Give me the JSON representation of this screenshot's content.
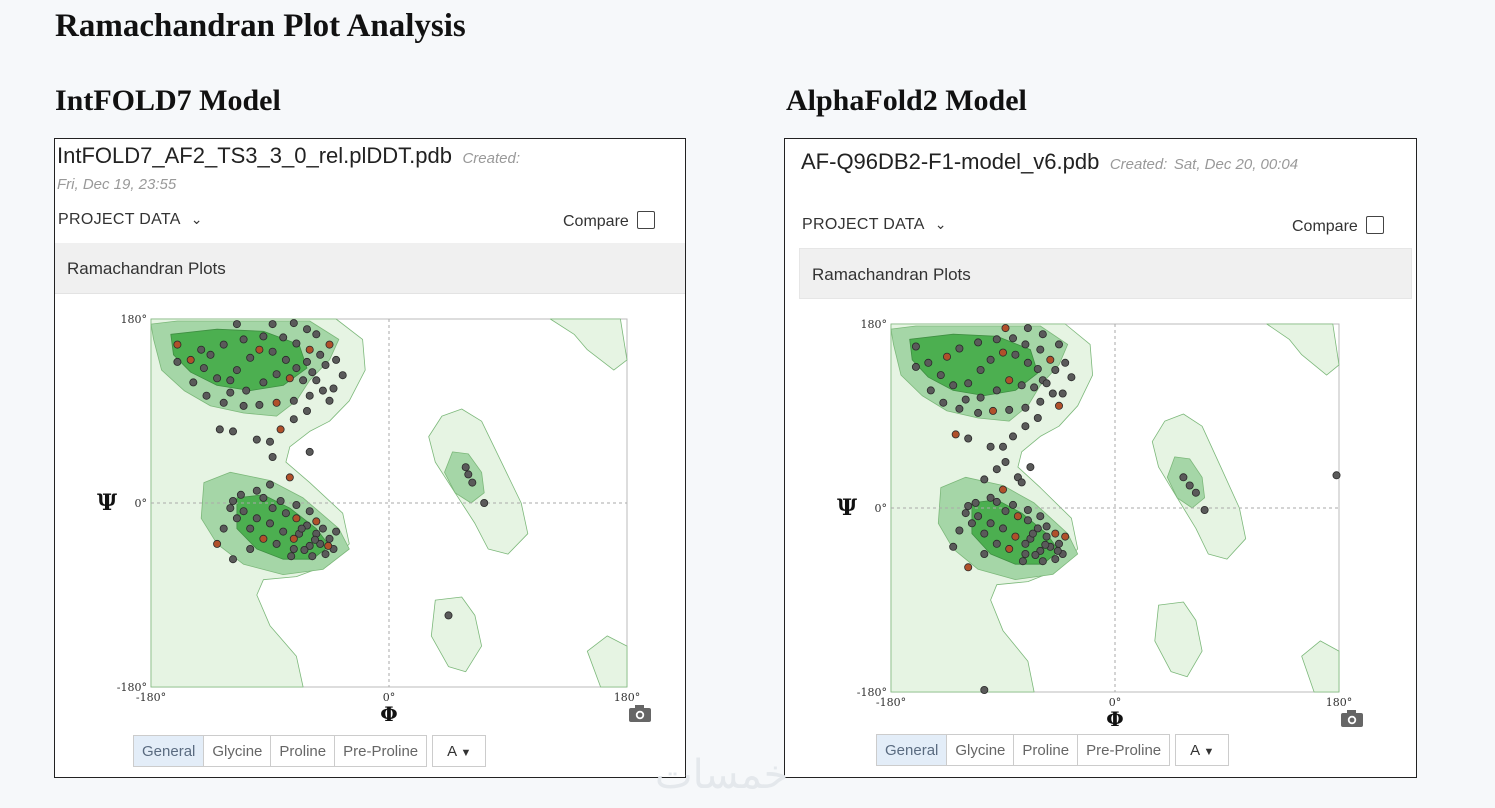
{
  "title": "Ramachandran Plot Analysis",
  "watermark": "خمسات",
  "panels": [
    {
      "heading": "IntFOLD7 Model",
      "file_name": "IntFOLD7_AF2_TS3_3_0_rel.plDDT.pdb",
      "created_label": "Created:",
      "created_value": "Fri, Dec 19, 23:55",
      "project_data": "PROJECT DATA",
      "compare": "Compare",
      "plot_header": "Ramachandran Plots",
      "tabs": [
        "General",
        "Glycine",
        "Proline",
        "Pre-Proline"
      ],
      "active_tab": "General",
      "chain_select": "A",
      "camera_icon": "camera-icon",
      "chevron_icon": "chevron-down-icon"
    },
    {
      "heading": "AlphaFold2 Model",
      "file_name": "AF-Q96DB2-F1-model_v6.pdb",
      "created_label": "Created:",
      "created_value": "Sat, Dec 20, 00:04",
      "project_data": "PROJECT DATA",
      "compare": "Compare",
      "plot_header": "Ramachandran Plots",
      "tabs": [
        "General",
        "Glycine",
        "Proline",
        "Pre-Proline"
      ],
      "active_tab": "General",
      "chain_select": "A",
      "camera_icon": "camera-icon",
      "chevron_icon": "chevron-down-icon"
    }
  ],
  "chart_data": [
    {
      "type": "scatter",
      "title": "Ramachandran Plots",
      "xlabel": "Φ",
      "ylabel": "Ψ",
      "xlim": [
        -180,
        180
      ],
      "ylim": [
        -180,
        180
      ],
      "x_ticks": [
        "-180°",
        "0°",
        "180°"
      ],
      "y_ticks": [
        "180°",
        "0°",
        "-180°"
      ],
      "grid": "dashed lines at 0°",
      "colors": {
        "favored": "#4caf50",
        "allowed": "#a5d6a7",
        "generous": "#e6f4e3",
        "point": "#5a5a5a",
        "point_edge": "#2a2a2a",
        "highlight": "#b0502a"
      },
      "series": [
        {
          "values": [
            [
              -120,
              120
            ],
            [
              -115,
              130
            ],
            [
              -105,
              142
            ],
            [
              -98,
              150
            ],
            [
              -88,
              148
            ],
            [
              -78,
              140
            ],
            [
              -70,
              132
            ],
            [
              -62,
              138
            ],
            [
              -58,
              128
            ],
            [
              -65,
              120
            ],
            [
              -75,
              122
            ],
            [
              -85,
              126
            ],
            [
              -95,
              118
            ],
            [
              -108,
              110
            ],
            [
              -120,
              108
            ],
            [
              -130,
              122
            ],
            [
              -140,
              132
            ],
            [
              -150,
              140
            ],
            [
              -135,
              145
            ],
            [
              -125,
              155
            ],
            [
              -110,
              160
            ],
            [
              -95,
              163
            ],
            [
              -80,
              162
            ],
            [
              -70,
              156
            ],
            [
              -60,
              150
            ],
            [
              -52,
              145
            ],
            [
              -48,
              135
            ],
            [
              -55,
              120
            ],
            [
              -50,
              110
            ],
            [
              -60,
              105
            ],
            [
              -72,
              100
            ],
            [
              -85,
              98
            ],
            [
              -98,
              96
            ],
            [
              -110,
              95
            ],
            [
              -125,
              98
            ],
            [
              -138,
              105
            ],
            [
              -148,
              118
            ],
            [
              -142,
              150
            ],
            [
              -160,
              155
            ],
            [
              -160,
              138
            ],
            [
              -115,
              175
            ],
            [
              -88,
              175
            ],
            [
              -72,
              176
            ],
            [
              -62,
              170
            ],
            [
              -55,
              165
            ],
            [
              -45,
              155
            ],
            [
              -40,
              140
            ],
            [
              -35,
              125
            ],
            [
              -42,
              112
            ],
            [
              -45,
              100
            ],
            [
              -62,
              90
            ],
            [
              -72,
              82
            ],
            [
              -82,
              72
            ],
            [
              -90,
              60
            ],
            [
              -100,
              62
            ],
            [
              -118,
              70
            ],
            [
              -128,
              72
            ],
            [
              -88,
              45
            ],
            [
              -60,
              50
            ],
            [
              -75,
              25
            ],
            [
              -90,
              18
            ],
            [
              -100,
              12
            ],
            [
              -112,
              8
            ],
            [
              -120,
              -5
            ],
            [
              -115,
              -15
            ],
            [
              -105,
              -25
            ],
            [
              -95,
              -35
            ],
            [
              -85,
              -40
            ],
            [
              -72,
              -45
            ],
            [
              -60,
              -42
            ],
            [
              -52,
              -40
            ],
            [
              -55,
              -30
            ],
            [
              -62,
              -22
            ],
            [
              -70,
              -15
            ],
            [
              -78,
              -10
            ],
            [
              -88,
              -5
            ],
            [
              -95,
              5
            ],
            [
              -82,
              2
            ],
            [
              -70,
              -2
            ],
            [
              -60,
              -8
            ],
            [
              -55,
              -18
            ],
            [
              -50,
              -25
            ],
            [
              -45,
              -35
            ],
            [
              -42,
              -45
            ],
            [
              -48,
              -50
            ],
            [
              -58,
              -52
            ],
            [
              -68,
              -30
            ],
            [
              -72,
              -35
            ],
            [
              -80,
              -28
            ],
            [
              -90,
              -20
            ],
            [
              -100,
              -15
            ],
            [
              -110,
              -8
            ],
            [
              -118,
              2
            ],
            [
              -125,
              -25
            ],
            [
              -130,
              -40
            ],
            [
              -118,
              -55
            ],
            [
              -105,
              -45
            ],
            [
              -66,
              -25
            ],
            [
              -56,
              -36
            ],
            [
              -64,
              -46
            ],
            [
              -74,
              -52
            ],
            [
              -46,
              -42
            ],
            [
              -40,
              -28
            ],
            [
              58,
              35
            ],
            [
              60,
              28
            ],
            [
              63,
              20
            ],
            [
              72,
              0
            ],
            [
              45,
              -110
            ]
          ]
        },
        {
          "values": [
            [
              -118,
              122
            ],
            [
              -108,
              135
            ],
            [
              -100,
              145
            ],
            [
              -90,
              152
            ],
            [
              -80,
              150
            ],
            [
              -70,
              142
            ],
            [
              -62,
              136
            ],
            [
              -58,
              125
            ],
            [
              -65,
              118
            ],
            [
              -75,
              120
            ],
            [
              -85,
              125
            ],
            [
              -95,
              115
            ],
            [
              -108,
              108
            ],
            [
              -120,
              106
            ],
            [
              -130,
              120
            ],
            [
              -140,
              130
            ],
            [
              -150,
              142
            ],
            [
              -135,
              148
            ],
            [
              -125,
              156
            ],
            [
              -110,
              162
            ],
            [
              -95,
              165
            ],
            [
              -82,
              166
            ],
            [
              -72,
              160
            ],
            [
              -60,
              155
            ],
            [
              -52,
              145
            ],
            [
              -48,
              135
            ],
            [
              -55,
              122
            ],
            [
              -50,
              112
            ],
            [
              -60,
              104
            ],
            [
              -72,
              98
            ],
            [
              -85,
              96
            ],
            [
              -98,
              95
            ],
            [
              -110,
              93
            ],
            [
              -125,
              97
            ],
            [
              -138,
              103
            ],
            [
              -148,
              115
            ],
            [
              -160,
              158
            ],
            [
              -160,
              138
            ],
            [
              -88,
              176
            ],
            [
              -70,
              176
            ],
            [
              -58,
              170
            ],
            [
              -45,
              160
            ],
            [
              -40,
              142
            ],
            [
              -35,
              128
            ],
            [
              -42,
              112
            ],
            [
              -45,
              100
            ],
            [
              -62,
              88
            ],
            [
              -72,
              80
            ],
            [
              -82,
              70
            ],
            [
              -90,
              60
            ],
            [
              -100,
              60
            ],
            [
              -118,
              68
            ],
            [
              -128,
              72
            ],
            [
              -88,
              45
            ],
            [
              -68,
              40
            ],
            [
              -78,
              30
            ],
            [
              -105,
              28
            ],
            [
              -95,
              38
            ],
            [
              -75,
              25
            ],
            [
              -90,
              18
            ],
            [
              -100,
              10
            ],
            [
              -112,
              5
            ],
            [
              -120,
              -5
            ],
            [
              -115,
              -15
            ],
            [
              -105,
              -25
            ],
            [
              -95,
              -35
            ],
            [
              -85,
              -40
            ],
            [
              -72,
              -45
            ],
            [
              -60,
              -42
            ],
            [
              -52,
              -38
            ],
            [
              -55,
              -28
            ],
            [
              -62,
              -20
            ],
            [
              -70,
              -12
            ],
            [
              -78,
              -8
            ],
            [
              -88,
              -3
            ],
            [
              -95,
              6
            ],
            [
              -82,
              3
            ],
            [
              -70,
              -2
            ],
            [
              -60,
              -8
            ],
            [
              -55,
              -18
            ],
            [
              -48,
              -25
            ],
            [
              -45,
              -35
            ],
            [
              -42,
              -45
            ],
            [
              -48,
              -50
            ],
            [
              -58,
              -52
            ],
            [
              -68,
              -30
            ],
            [
              -72,
              -35
            ],
            [
              -80,
              -28
            ],
            [
              -90,
              -20
            ],
            [
              -100,
              -15
            ],
            [
              -110,
              -8
            ],
            [
              -118,
              2
            ],
            [
              -125,
              -22
            ],
            [
              -130,
              -38
            ],
            [
              -118,
              -58
            ],
            [
              -105,
              -45
            ],
            [
              -66,
              -25
            ],
            [
              -56,
              -36
            ],
            [
              -64,
              -46
            ],
            [
              -74,
              -52
            ],
            [
              -46,
              -42
            ],
            [
              -40,
              -28
            ],
            [
              55,
              30
            ],
            [
              60,
              22
            ],
            [
              65,
              15
            ],
            [
              72,
              -2
            ],
            [
              178,
              32
            ],
            [
              -105,
              -178
            ]
          ]
        }
      ]
    }
  ]
}
